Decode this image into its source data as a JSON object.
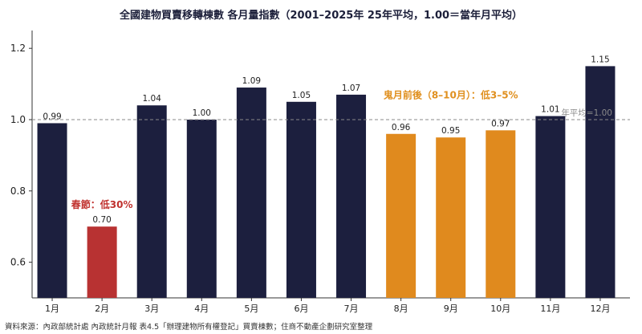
{
  "chart_data": {
    "type": "bar",
    "title": "全國建物買賣移轉棟數 各月量指數（2001–2025年 25年平均，1.00＝當年月平均）",
    "categories": [
      "1月",
      "2月",
      "3月",
      "4月",
      "5月",
      "6月",
      "7月",
      "8月",
      "9月",
      "10月",
      "11月",
      "12月"
    ],
    "values": [
      0.99,
      0.7,
      1.04,
      1.0,
      1.09,
      1.05,
      1.07,
      0.96,
      0.95,
      0.97,
      1.01,
      1.15
    ],
    "value_labels": [
      "0.99",
      "0.70",
      "1.04",
      "1.00",
      "1.09",
      "1.05",
      "1.07",
      "0.96",
      "0.95",
      "0.97",
      "1.01",
      "1.15"
    ],
    "bar_colors": [
      "#1c1f3e",
      "#b83232",
      "#1c1f3e",
      "#1c1f3e",
      "#1c1f3e",
      "#1c1f3e",
      "#1c1f3e",
      "#e08a1e",
      "#e08a1e",
      "#e08a1e",
      "#1c1f3e",
      "#1c1f3e"
    ],
    "ylim": [
      0.5,
      1.25
    ],
    "yticks": [
      0.6,
      0.8,
      1.0,
      1.2
    ],
    "ytick_labels": [
      "0.6",
      "0.8",
      "1.0",
      "1.2"
    ],
    "reference_line": {
      "value": 1.0,
      "label": "年平均=1.00",
      "color": "#8a8a8a",
      "style": "dashed"
    },
    "annotations": [
      {
        "text": "春節：低30%",
        "color": "#c0312e"
      },
      {
        "text": "鬼月前後（8–10月）：低3–5%",
        "color": "#e0901f"
      }
    ],
    "xlabel": "",
    "ylabel": "",
    "grid": false,
    "legend": "none"
  },
  "source": "資料來源：內政部統計處 內政統計月報 表4.5「辦理建物所有權登記」買賣棟數；住商不動產企劃研究室整理"
}
